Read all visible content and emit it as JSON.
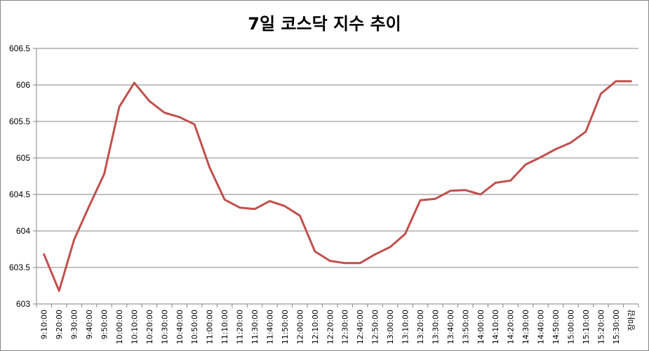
{
  "chart_data": {
    "type": "line",
    "title": "7일 코스닥 지수 추이",
    "xlabel": "",
    "ylabel": "",
    "ylim": [
      603,
      606.5
    ],
    "yticks": [
      "603",
      "603.5",
      "604",
      "604.5",
      "605",
      "605.5",
      "606",
      "606.5"
    ],
    "grid": true,
    "legend": "none",
    "line_color": "#C0504D",
    "categories": [
      "9:10:00",
      "9:20:00",
      "9:30:00",
      "9:40:00",
      "9:50:00",
      "10:00:00",
      "10:10:00",
      "10:20:00",
      "10:30:00",
      "10:40:00",
      "10:50:00",
      "11:00:00",
      "11:10:00",
      "11:20:00",
      "11:30:00",
      "11:40:00",
      "11:50:00",
      "12:00:00",
      "12:10:00",
      "12:20:00",
      "12:30:00",
      "12:40:00",
      "12:50:00",
      "13:00:00",
      "13:10:00",
      "13:20:00",
      "13:30:00",
      "13:40:00",
      "13:50:00",
      "14:00:00",
      "14:10:00",
      "14:20:00",
      "14:30:00",
      "14:40:00",
      "14:50:00",
      "15:00:00",
      "15:10:00",
      "15:20:00",
      "15:30:00",
      "장마감"
    ],
    "values": [
      603.68,
      603.18,
      603.88,
      604.34,
      604.78,
      605.7,
      606.03,
      605.78,
      605.62,
      605.56,
      605.46,
      604.87,
      604.43,
      604.32,
      604.3,
      604.41,
      604.34,
      604.21,
      603.72,
      603.59,
      603.56,
      603.56,
      603.68,
      603.78,
      603.96,
      604.42,
      604.44,
      604.55,
      604.56,
      604.5,
      604.66,
      604.69,
      604.91,
      605.01,
      605.12,
      605.21,
      605.36,
      605.88,
      606.05,
      606.05
    ]
  }
}
